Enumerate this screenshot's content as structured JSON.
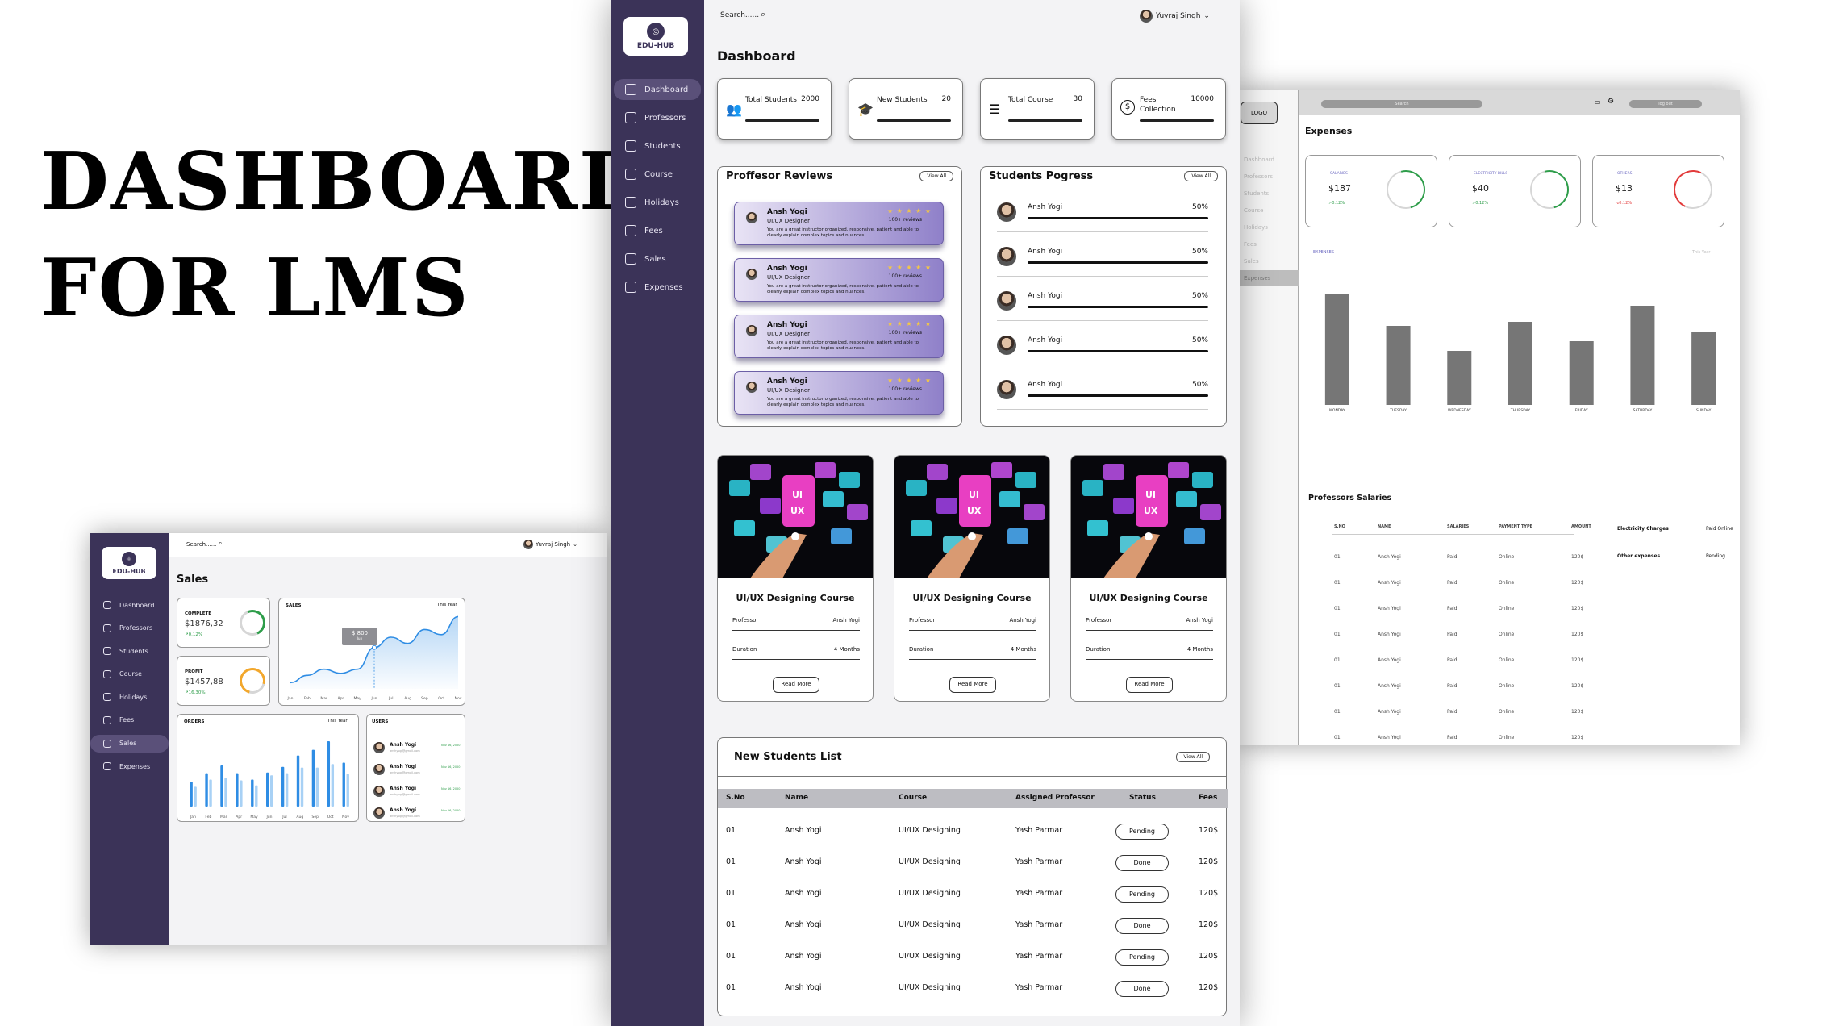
{
  "headline": {
    "line1": "DASHBOARD",
    "line2": "FOR LMS"
  },
  "brand": {
    "name": "EDU-HUB"
  },
  "colors": {
    "sidebar": "#3b3358",
    "accent": "#7b6cc0",
    "chart_blue": "#2f8de4",
    "positive": "#2e9d4a",
    "negative": "#e23b3b"
  },
  "nav": [
    {
      "label": "Dashboard",
      "icon": "grid-icon"
    },
    {
      "label": "Professors",
      "icon": "professors-icon"
    },
    {
      "label": "Students",
      "icon": "students-icon"
    },
    {
      "label": "Course",
      "icon": "course-icon"
    },
    {
      "label": "Holidays",
      "icon": "calendar-icon"
    },
    {
      "label": "Fees",
      "icon": "dollar-icon"
    },
    {
      "label": "Sales",
      "icon": "sales-icon"
    },
    {
      "label": "Expenses",
      "icon": "expenses-icon"
    }
  ],
  "dashboard": {
    "search_placeholder": "Search......",
    "user": "Yuvraj Singh",
    "title": "Dashboard",
    "stats": [
      {
        "label": "Total Students",
        "value": "2000",
        "icon": "users-icon"
      },
      {
        "label": "New Students",
        "value": "20",
        "icon": "graduation-cap-icon"
      },
      {
        "label": "Total Course",
        "value": "30",
        "icon": "list-icon"
      },
      {
        "label": "Fees Collection",
        "value": "10000",
        "icon": "dollar-icon"
      }
    ],
    "reviews_title": "Proffesor Reviews",
    "progress_title": "Students Pogress",
    "view_all": "View All",
    "reviews": [
      {
        "name": "Ansh Yogi",
        "role": "UI/UX Designer",
        "stars": "★ ★ ★ ★ ★",
        "count": "100+ reviews",
        "text": "You are a great instructor organized, responsive, patient and able to clearly explain complex topics and nuances."
      },
      {
        "name": "Ansh Yogi",
        "role": "UI/UX Designer",
        "stars": "★ ★ ★ ★ ★",
        "count": "100+ reviews",
        "text": "You are a great instructor organized, responsive, patient and able to clearly explain complex topics and nuances."
      },
      {
        "name": "Ansh Yogi",
        "role": "UI/UX Designer",
        "stars": "★ ★ ★ ★ ★",
        "count": "100+ reviews",
        "text": "You are a great instructor organized, responsive, patient and able to clearly explain complex topics and nuances."
      },
      {
        "name": "Ansh Yogi",
        "role": "UI/UX Designer",
        "stars": "★ ★ ★ ★ ★",
        "count": "100+ reviews",
        "text": "You are a great instructor organized, responsive, patient and able to clearly explain complex topics and nuances."
      }
    ],
    "progress": [
      {
        "name": "Ansh Yogi",
        "percent": "50%"
      },
      {
        "name": "Ansh Yogi",
        "percent": "50%"
      },
      {
        "name": "Ansh Yogi",
        "percent": "50%"
      },
      {
        "name": "Ansh Yogi",
        "percent": "50%"
      },
      {
        "name": "Ansh Yogi",
        "percent": "50%"
      }
    ],
    "courses": [
      {
        "title": "UI/UX Designing Course",
        "prof_label": "Professor",
        "prof": "Ansh Yogi",
        "dur_label": "Duration",
        "dur": "4 Months",
        "button": "Read More"
      },
      {
        "title": "UI/UX Designing Course",
        "prof_label": "Professor",
        "prof": "Ansh Yogi",
        "dur_label": "Duration",
        "dur": "4 Months",
        "button": "Read More"
      },
      {
        "title": "UI/UX Designing Course",
        "prof_label": "Professor",
        "prof": "Ansh Yogi",
        "dur_label": "Duration",
        "dur": "4 Months",
        "button": "Read More"
      }
    ],
    "students_list_title": "New Students List",
    "table_headers": [
      "S.No",
      "Name",
      "Course",
      "Assigned Professor",
      "Status",
      "Fees"
    ],
    "table_rows": [
      {
        "sno": "01",
        "name": "Ansh Yogi",
        "course": "UI/UX Designing",
        "prof": "Yash Parmar",
        "status": "Pending",
        "fees": "120$"
      },
      {
        "sno": "01",
        "name": "Ansh Yogi",
        "course": "UI/UX Designing",
        "prof": "Yash Parmar",
        "status": "Done",
        "fees": "120$"
      },
      {
        "sno": "01",
        "name": "Ansh Yogi",
        "course": "UI/UX Designing",
        "prof": "Yash Parmar",
        "status": "Pending",
        "fees": "120$"
      },
      {
        "sno": "01",
        "name": "Ansh Yogi",
        "course": "UI/UX Designing",
        "prof": "Yash Parmar",
        "status": "Done",
        "fees": "120$"
      },
      {
        "sno": "01",
        "name": "Ansh Yogi",
        "course": "UI/UX Designing",
        "prof": "Yash Parmar",
        "status": "Pending",
        "fees": "120$"
      },
      {
        "sno": "01",
        "name": "Ansh Yogi",
        "course": "UI/UX Designing",
        "prof": "Yash Parmar",
        "status": "Done",
        "fees": "120$"
      }
    ]
  },
  "sales": {
    "title": "Sales",
    "search_placeholder": "Search......",
    "user": "Yuvraj Singh",
    "complete_label": "COMPLETE",
    "complete_value": "$1876,32",
    "complete_change": "↗0.12%",
    "profit_label": "PROFIT",
    "profit_value": "$1457,88",
    "profit_change": "↗16.30%",
    "sales_label": "SALES",
    "orders_label": "ORDERS",
    "users_label": "USERS",
    "range": "This Year",
    "tooltip_value": "$ 800",
    "tooltip_month": "Jun",
    "users": [
      {
        "name": "Ansh Yogi",
        "email": "anshyogi@gmail.com",
        "date": "Nov 16, 2020"
      },
      {
        "name": "Ansh Yogi",
        "email": "anshyogi@gmail.com",
        "date": "Nov 16, 2020"
      },
      {
        "name": "Ansh Yogi",
        "email": "anshyogi@gmail.com",
        "date": "Nov 16, 2020"
      },
      {
        "name": "Ansh Yogi",
        "email": "anshyogi@gmail.com",
        "date": "Nov 16, 2020"
      }
    ]
  },
  "expenses": {
    "logo": "LOGO",
    "search": "Search",
    "logout": "log out",
    "title": "Expenses",
    "nav": [
      "Dashboard",
      "Professors",
      "Students",
      "Course",
      "Holidays",
      "Fees",
      "Sales",
      "Expenses"
    ],
    "cards": [
      {
        "label": "SALARIES",
        "value": "$187",
        "change": "↗0.12%",
        "positive": true
      },
      {
        "label": "ELECTRICITY BILLS",
        "value": "$40",
        "change": "↗0.12%",
        "positive": true
      },
      {
        "label": "OTHERS",
        "value": "$13",
        "change": "↘0.12%",
        "positive": false
      }
    ],
    "chart_label": "EXPENSES",
    "chart_range": "This Year",
    "salaries_title": "Professors Salaries",
    "salary_headers": [
      "S.NO",
      "NAME",
      "SALARIES",
      "PAYMENT TYPE",
      "AMOUNT"
    ],
    "salary_rows": [
      {
        "sno": "01",
        "name": "Ansh Yogi",
        "status": "Paid",
        "type": "Online",
        "amount": "120$"
      },
      {
        "sno": "01",
        "name": "Ansh Yogi",
        "status": "Paid",
        "type": "Online",
        "amount": "120$"
      },
      {
        "sno": "01",
        "name": "Ansh Yogi",
        "status": "Paid",
        "type": "Online",
        "amount": "120$"
      },
      {
        "sno": "01",
        "name": "Ansh Yogi",
        "status": "Paid",
        "type": "Online",
        "amount": "120$"
      },
      {
        "sno": "01",
        "name": "Ansh Yogi",
        "status": "Paid",
        "type": "Online",
        "amount": "120$"
      },
      {
        "sno": "01",
        "name": "Ansh Yogi",
        "status": "Paid",
        "type": "Online",
        "amount": "120$"
      },
      {
        "sno": "01",
        "name": "Ansh Yogi",
        "status": "Paid",
        "type": "Online",
        "amount": "120$"
      },
      {
        "sno": "01",
        "name": "Ansh Yogi",
        "status": "Paid",
        "type": "Online",
        "amount": "120$"
      }
    ],
    "other": [
      {
        "label": "Electricity Charges",
        "value": "Paid Online"
      },
      {
        "label": "Other expenses",
        "value": "Pending"
      }
    ]
  },
  "chart_data": [
    {
      "type": "line",
      "title": "SALES",
      "categories": [
        "Jan",
        "Feb",
        "Mar",
        "Apr",
        "May",
        "Jun",
        "Jul",
        "Aug",
        "Sep",
        "Oct",
        "Nov"
      ],
      "values": [
        120,
        260,
        380,
        300,
        380,
        800,
        1000,
        880,
        1150,
        1050,
        1400
      ],
      "highlight": {
        "category": "Jun",
        "value": 800
      }
    },
    {
      "type": "bar",
      "title": "ORDERS",
      "categories": [
        "Jan",
        "Feb",
        "Mar",
        "Apr",
        "May",
        "Jun",
        "Jul",
        "Aug",
        "Sep",
        "Oct",
        "Nov"
      ],
      "series": [
        {
          "values": [
            35,
            47,
            58,
            47,
            38,
            48,
            56,
            72,
            80,
            92,
            62
          ]
        },
        {
          "values": [
            28,
            38,
            40,
            37,
            30,
            44,
            47,
            55,
            55,
            60,
            46
          ]
        }
      ],
      "ylim": [
        0,
        100
      ]
    },
    {
      "type": "bar",
      "title": "EXPENSES",
      "categories": [
        "MONDAY",
        "TUESDAY",
        "WEDNESDAY",
        "THURSDAY",
        "FRIDAY",
        "SATURDAY",
        "SUNDAY"
      ],
      "values": [
        138,
        98,
        67,
        103,
        79,
        123,
        91
      ],
      "ylim": [
        0,
        150
      ]
    }
  ]
}
